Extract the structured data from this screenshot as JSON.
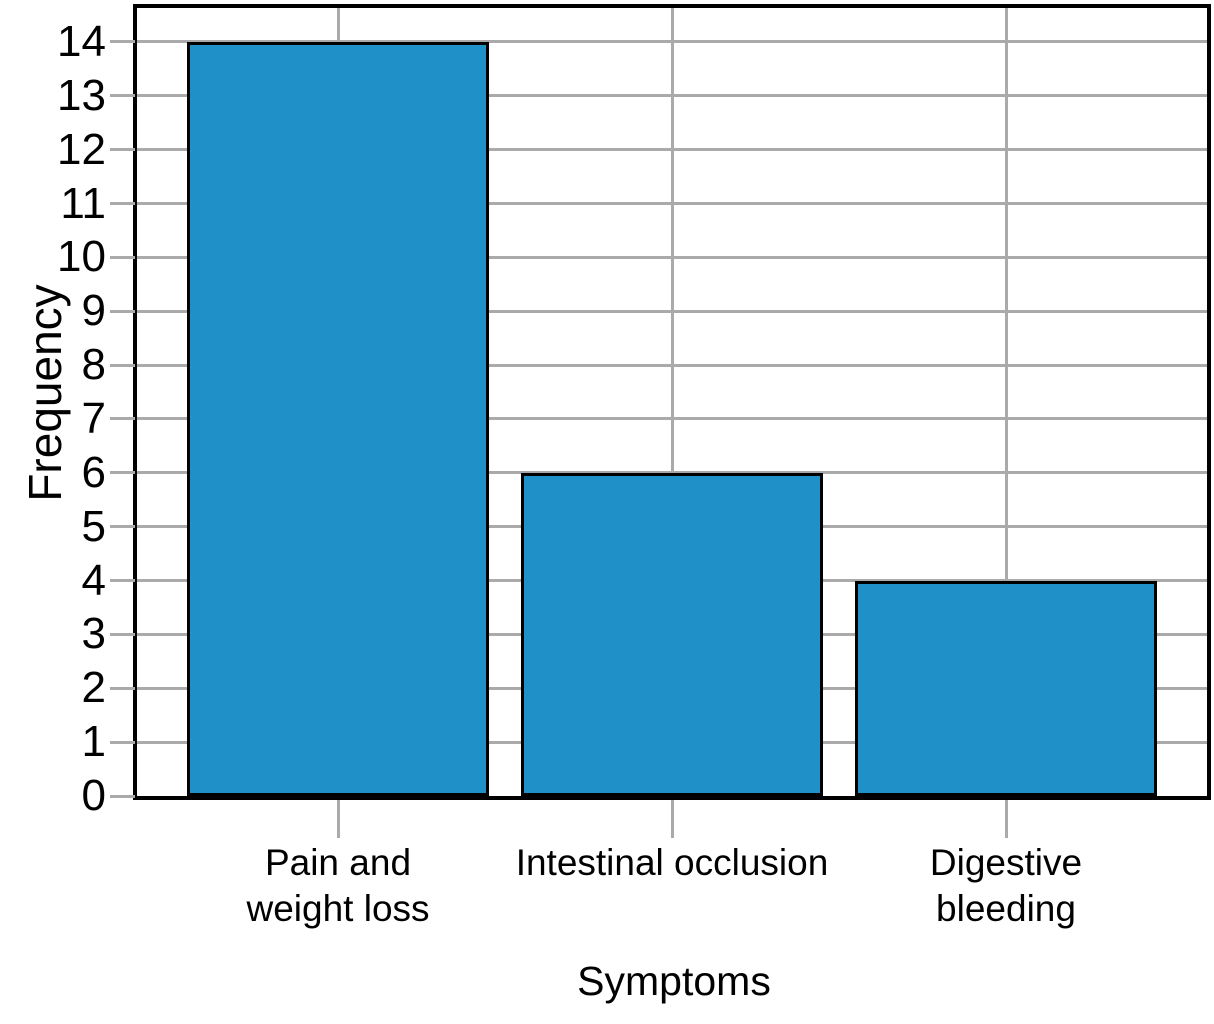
{
  "chart_data": {
    "type": "bar",
    "title": "",
    "xlabel": "Symptoms",
    "ylabel": "Frequency",
    "categories": [
      "Pain and\nweight loss",
      "Intestinal occlusion",
      "Digestive\nbleeding"
    ],
    "values": [
      14,
      6,
      4
    ],
    "y_ticks": [
      0,
      1,
      2,
      3,
      4,
      5,
      6,
      7,
      8,
      9,
      10,
      11,
      12,
      13,
      14
    ],
    "ylim": [
      0,
      14.63
    ],
    "grid": "on",
    "legend": "none",
    "colors": {
      "bar_fill": "#2090C9",
      "bar_edge": "#000000",
      "gridline": "#AAAAAA",
      "tick": "#AAAAAA",
      "spine": "#000000",
      "text": "#000000",
      "background": "#FFFFFF"
    }
  }
}
